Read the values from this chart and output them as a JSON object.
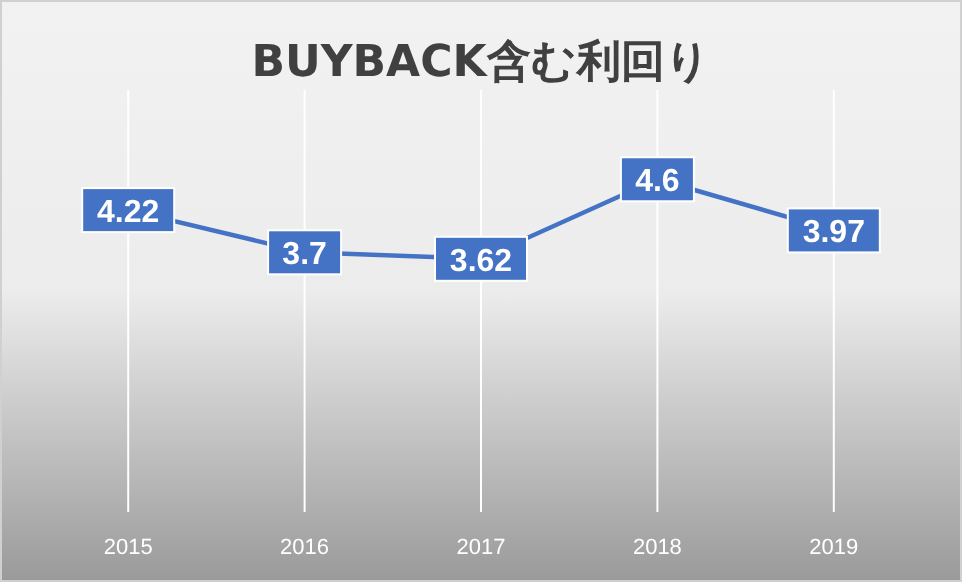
{
  "chart_data": {
    "type": "line",
    "title": "BUYBACK含む利回り",
    "categories": [
      "2015",
      "2016",
      "2017",
      "2018",
      "2019"
    ],
    "series": [
      {
        "color": "#4472c4",
        "values": [
          4.22,
          3.7,
          3.62,
          4.6,
          3.97
        ]
      }
    ],
    "ylim": [
      0.5,
      5.7
    ],
    "tick_labels": "x",
    "grid": "x",
    "data_labels": true,
    "line_style": "solid"
  }
}
